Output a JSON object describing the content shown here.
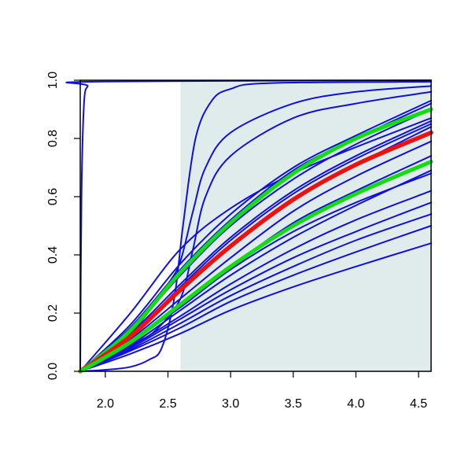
{
  "chart_data": {
    "type": "line",
    "xlim": [
      1.8,
      4.6
    ],
    "ylim": [
      0,
      1
    ],
    "x_ticks": [
      "2.0",
      "2.5",
      "3.0",
      "3.5",
      "4.0",
      "4.5"
    ],
    "y_ticks": [
      "0.0",
      "0.2",
      "0.4",
      "0.6",
      "0.8",
      "1.0"
    ],
    "grid": false,
    "legend": "none",
    "shaded_region": {
      "x": [
        2.6,
        4.6
      ],
      "y": [
        0,
        1
      ],
      "color": "#e0ecec"
    },
    "colors": {
      "blue": "#1010dd",
      "red": "#ee1111",
      "green": "#11dd11",
      "axis": "#000000"
    },
    "series": [
      {
        "color": "blue",
        "points": [
          [
            1.8,
            0
          ],
          [
            1.81,
            0.6
          ],
          [
            1.83,
            0.92
          ],
          [
            1.86,
            0.98
          ],
          [
            1.9,
            0.995
          ],
          [
            4.6,
            1.0
          ]
        ]
      },
      {
        "color": "blue",
        "points": [
          [
            1.8,
            0
          ],
          [
            2.0,
            0.005
          ],
          [
            2.2,
            0.015
          ],
          [
            2.35,
            0.04
          ],
          [
            2.45,
            0.08
          ],
          [
            2.55,
            0.25
          ],
          [
            2.62,
            0.5
          ],
          [
            2.72,
            0.8
          ],
          [
            2.85,
            0.93
          ],
          [
            3.0,
            0.97
          ],
          [
            3.3,
            0.99
          ],
          [
            4.6,
            0.995
          ]
        ]
      },
      {
        "color": "blue",
        "points": [
          [
            1.8,
            0
          ],
          [
            2.2,
            0.13
          ],
          [
            2.5,
            0.3
          ],
          [
            2.6,
            0.38
          ],
          [
            2.7,
            0.55
          ],
          [
            2.8,
            0.7
          ],
          [
            3.0,
            0.82
          ],
          [
            3.5,
            0.92
          ],
          [
            4.0,
            0.96
          ],
          [
            4.6,
            0.98
          ]
        ]
      },
      {
        "color": "blue",
        "points": [
          [
            1.8,
            0
          ],
          [
            2.2,
            0.16
          ],
          [
            2.6,
            0.37
          ],
          [
            3.0,
            0.54
          ],
          [
            3.5,
            0.7
          ],
          [
            4.0,
            0.81
          ],
          [
            4.6,
            0.93
          ]
        ]
      },
      {
        "color": "blue",
        "points": [
          [
            1.8,
            0
          ],
          [
            2.2,
            0.15
          ],
          [
            2.6,
            0.35
          ],
          [
            3.0,
            0.52
          ],
          [
            3.5,
            0.69
          ],
          [
            4.0,
            0.8
          ],
          [
            4.6,
            0.92
          ]
        ]
      },
      {
        "color": "blue",
        "points": [
          [
            1.8,
            0
          ],
          [
            2.2,
            0.14
          ],
          [
            2.6,
            0.33
          ],
          [
            3.0,
            0.5
          ],
          [
            3.5,
            0.66
          ],
          [
            4.0,
            0.78
          ],
          [
            4.6,
            0.9
          ]
        ]
      },
      {
        "color": "blue",
        "points": [
          [
            1.8,
            0
          ],
          [
            2.2,
            0.13
          ],
          [
            2.6,
            0.3
          ],
          [
            3.0,
            0.46
          ],
          [
            3.5,
            0.62
          ],
          [
            4.0,
            0.74
          ],
          [
            4.6,
            0.86
          ]
        ]
      },
      {
        "color": "blue",
        "points": [
          [
            1.8,
            0
          ],
          [
            2.2,
            0.12
          ],
          [
            2.6,
            0.28
          ],
          [
            3.0,
            0.43
          ],
          [
            3.5,
            0.59
          ],
          [
            4.0,
            0.71
          ],
          [
            4.6,
            0.84
          ]
        ]
      },
      {
        "color": "blue",
        "points": [
          [
            1.8,
            0
          ],
          [
            2.2,
            0.11
          ],
          [
            2.6,
            0.25
          ],
          [
            3.0,
            0.39
          ],
          [
            3.5,
            0.55
          ],
          [
            4.0,
            0.67
          ],
          [
            4.6,
            0.79
          ]
        ]
      },
      {
        "color": "blue",
        "points": [
          [
            1.8,
            0
          ],
          [
            2.2,
            0.1
          ],
          [
            2.6,
            0.23
          ],
          [
            3.0,
            0.36
          ],
          [
            3.5,
            0.51
          ],
          [
            4.0,
            0.62
          ],
          [
            4.6,
            0.74
          ]
        ]
      },
      {
        "color": "blue",
        "points": [
          [
            1.8,
            0
          ],
          [
            2.2,
            0.09
          ],
          [
            2.6,
            0.21
          ],
          [
            3.0,
            0.33
          ],
          [
            3.5,
            0.46
          ],
          [
            4.0,
            0.57
          ],
          [
            4.6,
            0.69
          ]
        ]
      },
      {
        "color": "blue",
        "points": [
          [
            1.8,
            0
          ],
          [
            2.2,
            0.085
          ],
          [
            2.6,
            0.19
          ],
          [
            3.0,
            0.3
          ],
          [
            3.5,
            0.42
          ],
          [
            4.0,
            0.52
          ],
          [
            4.6,
            0.62
          ]
        ]
      },
      {
        "color": "blue",
        "points": [
          [
            1.8,
            0
          ],
          [
            2.2,
            0.08
          ],
          [
            2.6,
            0.18
          ],
          [
            3.0,
            0.28
          ],
          [
            3.5,
            0.39
          ],
          [
            4.0,
            0.48
          ],
          [
            4.6,
            0.58
          ]
        ]
      },
      {
        "color": "blue",
        "points": [
          [
            1.8,
            0
          ],
          [
            2.2,
            0.075
          ],
          [
            2.6,
            0.165
          ],
          [
            3.0,
            0.26
          ],
          [
            3.5,
            0.36
          ],
          [
            4.0,
            0.45
          ],
          [
            4.6,
            0.54
          ]
        ]
      },
      {
        "color": "blue",
        "points": [
          [
            1.8,
            0
          ],
          [
            2.2,
            0.07
          ],
          [
            2.6,
            0.15
          ],
          [
            3.0,
            0.24
          ],
          [
            3.5,
            0.33
          ],
          [
            4.0,
            0.41
          ],
          [
            4.6,
            0.5
          ]
        ]
      },
      {
        "color": "blue",
        "points": [
          [
            1.8,
            0
          ],
          [
            2.2,
            0.06
          ],
          [
            2.6,
            0.13
          ],
          [
            3.0,
            0.21
          ],
          [
            3.5,
            0.29
          ],
          [
            4.0,
            0.36
          ],
          [
            4.6,
            0.44
          ]
        ]
      },
      {
        "color": "blue",
        "points": [
          [
            1.8,
            0
          ],
          [
            2.2,
            0.2
          ],
          [
            2.6,
            0.42
          ],
          [
            3.0,
            0.56
          ],
          [
            3.5,
            0.68
          ],
          [
            4.0,
            0.77
          ],
          [
            4.6,
            0.87
          ]
        ]
      },
      {
        "color": "blue",
        "points": [
          [
            1.8,
            0
          ],
          [
            2.2,
            0.09
          ],
          [
            2.4,
            0.14
          ],
          [
            2.6,
            0.25
          ],
          [
            2.7,
            0.42
          ],
          [
            2.8,
            0.6
          ],
          [
            3.0,
            0.74
          ],
          [
            3.5,
            0.87
          ],
          [
            4.0,
            0.92
          ],
          [
            4.6,
            0.96
          ]
        ]
      },
      {
        "color": "blue",
        "points": [
          [
            1.8,
            0
          ],
          [
            2.2,
            0.12
          ],
          [
            2.6,
            0.29
          ],
          [
            3.0,
            0.45
          ],
          [
            3.5,
            0.61
          ],
          [
            4.0,
            0.73
          ],
          [
            4.6,
            0.85
          ]
        ]
      },
      {
        "color": "blue",
        "points": [
          [
            1.8,
            0
          ],
          [
            2.2,
            0.1
          ],
          [
            2.6,
            0.22
          ],
          [
            3.0,
            0.35
          ],
          [
            3.5,
            0.48
          ],
          [
            4.0,
            0.58
          ],
          [
            4.6,
            0.68
          ]
        ]
      },
      {
        "color": "green",
        "points": [
          [
            1.8,
            0
          ],
          [
            2.2,
            0.14
          ],
          [
            2.6,
            0.34
          ],
          [
            3.0,
            0.51
          ],
          [
            3.5,
            0.68
          ],
          [
            4.0,
            0.8
          ],
          [
            4.6,
            0.9
          ]
        ]
      },
      {
        "color": "red",
        "points": [
          [
            1.8,
            0
          ],
          [
            2.2,
            0.12
          ],
          [
            2.6,
            0.28
          ],
          [
            3.0,
            0.43
          ],
          [
            3.5,
            0.59
          ],
          [
            4.0,
            0.71
          ],
          [
            4.6,
            0.82
          ]
        ]
      },
      {
        "color": "green",
        "points": [
          [
            1.8,
            0
          ],
          [
            2.2,
            0.1
          ],
          [
            2.6,
            0.23
          ],
          [
            3.0,
            0.36
          ],
          [
            3.5,
            0.5
          ],
          [
            4.0,
            0.61
          ],
          [
            4.6,
            0.72
          ]
        ]
      }
    ]
  }
}
